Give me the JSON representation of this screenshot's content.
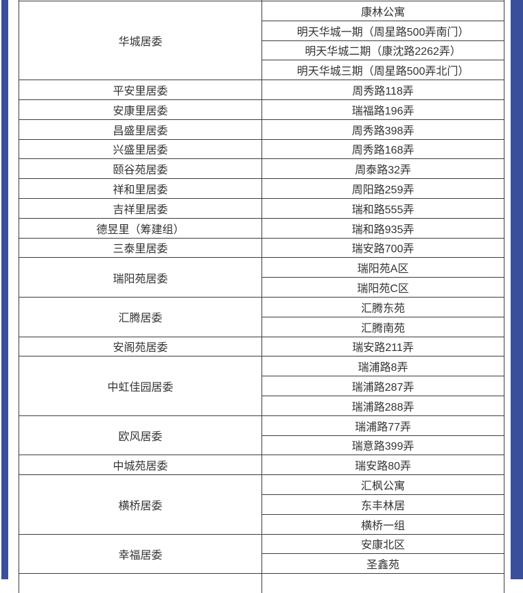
{
  "colors": {
    "accent_bar": "#3a4f9b",
    "table_border": "#3b3b3b",
    "text": "#333333"
  },
  "table": {
    "columns": [
      "committee",
      "location"
    ],
    "groups": [
      {
        "committee": "华城居委",
        "locations": [
          "康林公寓",
          "明天华城一期（周星路500弄南门）",
          "明天华城二期（康沈路2262弄）",
          "明天华城三期（周星路500弄北门）"
        ]
      },
      {
        "committee": "平安里居委",
        "locations": [
          "周秀路118弄"
        ]
      },
      {
        "committee": "安康里居委",
        "locations": [
          "瑞福路196弄"
        ]
      },
      {
        "committee": "昌盛里居委",
        "locations": [
          "周秀路398弄"
        ]
      },
      {
        "committee": "兴盛里居委",
        "locations": [
          "周秀路168弄"
        ]
      },
      {
        "committee": "颐谷苑居委",
        "locations": [
          "周泰路32弄"
        ]
      },
      {
        "committee": "祥和里居委",
        "locations": [
          "周阳路259弄"
        ]
      },
      {
        "committee": "吉祥里居委",
        "locations": [
          "瑞和路555弄"
        ]
      },
      {
        "committee": "德昱里（筹建组）",
        "locations": [
          "瑞和路935弄"
        ]
      },
      {
        "committee": "三泰里居委",
        "locations": [
          "瑞安路700弄"
        ]
      },
      {
        "committee": "瑞阳苑居委",
        "locations": [
          "瑞阳苑A区",
          "瑞阳苑C区"
        ]
      },
      {
        "committee": "汇腾居委",
        "locations": [
          "汇腾东苑",
          "汇腾南苑"
        ]
      },
      {
        "committee": "安阁苑居委",
        "locations": [
          "瑞安路211弄"
        ]
      },
      {
        "committee": "中虹佳园居委",
        "locations": [
          "瑞浦路8弄",
          "瑞浦路287弄",
          "瑞浦路288弄"
        ]
      },
      {
        "committee": "欧风居委",
        "locations": [
          "瑞浦路77弄",
          "瑞意路399弄"
        ]
      },
      {
        "committee": "中城苑居委",
        "locations": [
          "瑞安路80弄"
        ]
      },
      {
        "committee": "横桥居委",
        "locations": [
          "汇枫公寓",
          "东丰林居",
          "横桥一组"
        ]
      },
      {
        "committee": "幸福居委",
        "locations": [
          "安康北区",
          "圣鑫苑"
        ]
      }
    ]
  }
}
